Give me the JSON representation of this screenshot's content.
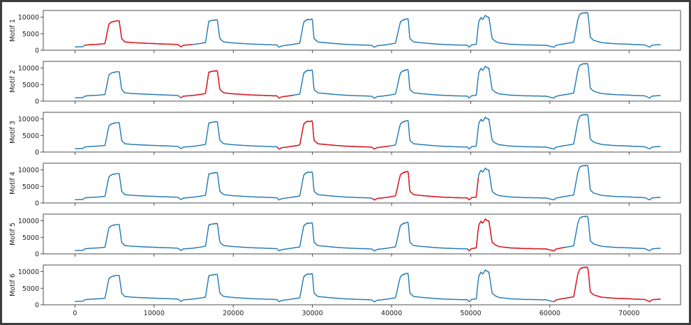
{
  "chart_data": {
    "type": "line",
    "title": "",
    "xlabel": "",
    "xlim": [
      -4000,
      76500
    ],
    "xticks": [
      0,
      10000,
      20000,
      30000,
      40000,
      50000,
      60000,
      70000
    ],
    "ylim": [
      0,
      12000
    ],
    "yticks": [
      0,
      5000,
      10000
    ],
    "grid": false,
    "colors": {
      "base": "#1f77b4",
      "highlight": "#e41a1c"
    },
    "base_series": {
      "x": [
        0,
        1000,
        1200,
        2000,
        3000,
        3800,
        4300,
        4800,
        5600,
        5900,
        6300,
        7200,
        9000,
        11000,
        13000,
        13400,
        13700,
        14200,
        14900,
        15700,
        16500,
        16900,
        17200,
        18000,
        18300,
        18800,
        20000,
        22000,
        24000,
        25500,
        25800,
        26100,
        26800,
        27600,
        28400,
        28900,
        29300,
        30000,
        30200,
        30700,
        32000,
        34000,
        36000,
        37500,
        37800,
        38200,
        38800,
        39700,
        40500,
        41100,
        41500,
        42100,
        42300,
        42800,
        44000,
        46000,
        48000,
        49600,
        49800,
        50100,
        50700,
        51000,
        51300,
        51500,
        51800,
        52300,
        52700,
        53100,
        53600,
        55000,
        57000,
        59500,
        60500,
        60800,
        61300,
        62000,
        63000,
        63500,
        63800,
        64100,
        64800,
        65100,
        65500,
        66500,
        68000,
        70000,
        72000,
        72600,
        72900,
        73300,
        74000
      ],
      "y": [
        1000,
        1050,
        1500,
        1700,
        1800,
        2000,
        8000,
        8700,
        8800,
        3500,
        2500,
        2300,
        2100,
        1900,
        1700,
        1000,
        1500,
        1600,
        1700,
        2000,
        2300,
        8700,
        9000,
        9100,
        3500,
        2500,
        2200,
        1900,
        1700,
        1600,
        900,
        1300,
        1500,
        1800,
        2100,
        8500,
        9200,
        9300,
        3500,
        2500,
        2200,
        1800,
        1600,
        1500,
        900,
        1400,
        1500,
        1800,
        2100,
        8500,
        9200,
        9500,
        3500,
        2500,
        2200,
        1800,
        1600,
        1500,
        900,
        1600,
        1800,
        8500,
        10000,
        9200,
        10500,
        9800,
        3500,
        2700,
        2200,
        1800,
        1600,
        1500,
        900,
        1500,
        1700,
        2000,
        2400,
        9000,
        11000,
        11200,
        11300,
        4000,
        3000,
        2300,
        2000,
        1800,
        1600,
        900,
        1500,
        1600,
        1700
      ]
    },
    "panels": [
      {
        "label": "Motif 1",
        "highlight": [
          1200,
          14900
        ]
      },
      {
        "label": "Motif 2",
        "highlight": [
          13400,
          27600
        ]
      },
      {
        "label": "Motif 3",
        "highlight": [
          25500,
          39700
        ]
      },
      {
        "label": "Motif 4",
        "highlight": [
          37500,
          51000
        ]
      },
      {
        "label": "Motif 5",
        "highlight": [
          49600,
          62000
        ]
      },
      {
        "label": "Motif 6",
        "highlight": [
          60500,
          74000
        ]
      }
    ]
  }
}
